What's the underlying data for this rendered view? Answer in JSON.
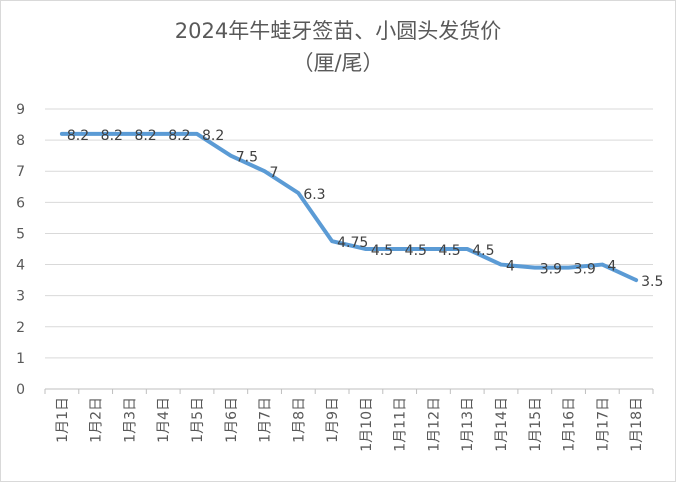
{
  "chart_data": {
    "type": "line",
    "title": "2024年牛蛙牙签苗、小圆头发货价",
    "subtitle": "（厘/尾）",
    "xlabel": "",
    "ylabel": "",
    "categories": [
      "1月1日",
      "1月2日",
      "1月3日",
      "1月4日",
      "1月5日",
      "1月6日",
      "1月7日",
      "1月8日",
      "1月9日",
      "1月10日",
      "1月11日",
      "1月12日",
      "1月13日",
      "1月14日",
      "1月15日",
      "1月16日",
      "1月17日",
      "1月18日"
    ],
    "series": [
      {
        "values": [
          8.2,
          8.2,
          8.2,
          8.2,
          8.2,
          7.5,
          7,
          6.3,
          4.75,
          4.5,
          4.5,
          4.5,
          4.5,
          4,
          3.9,
          3.9,
          4,
          3.5
        ],
        "labels": [
          "8.2",
          "8.2",
          "8.2",
          "8.2",
          "8.2",
          "7.5",
          "7",
          "6.3",
          "4.75",
          "4.5",
          "4.5",
          "4.5",
          "4.5",
          "4",
          "3.9",
          "3.9",
          "4",
          "3.5"
        ]
      }
    ],
    "ylim": [
      0,
      9
    ],
    "yticks": [
      0,
      1,
      2,
      3,
      4,
      5,
      6,
      7,
      8,
      9
    ],
    "grid": true,
    "legend": "none",
    "line_color": "#5b9bd5",
    "grid_color": "#d9d9d9",
    "text_color": "#595959"
  }
}
